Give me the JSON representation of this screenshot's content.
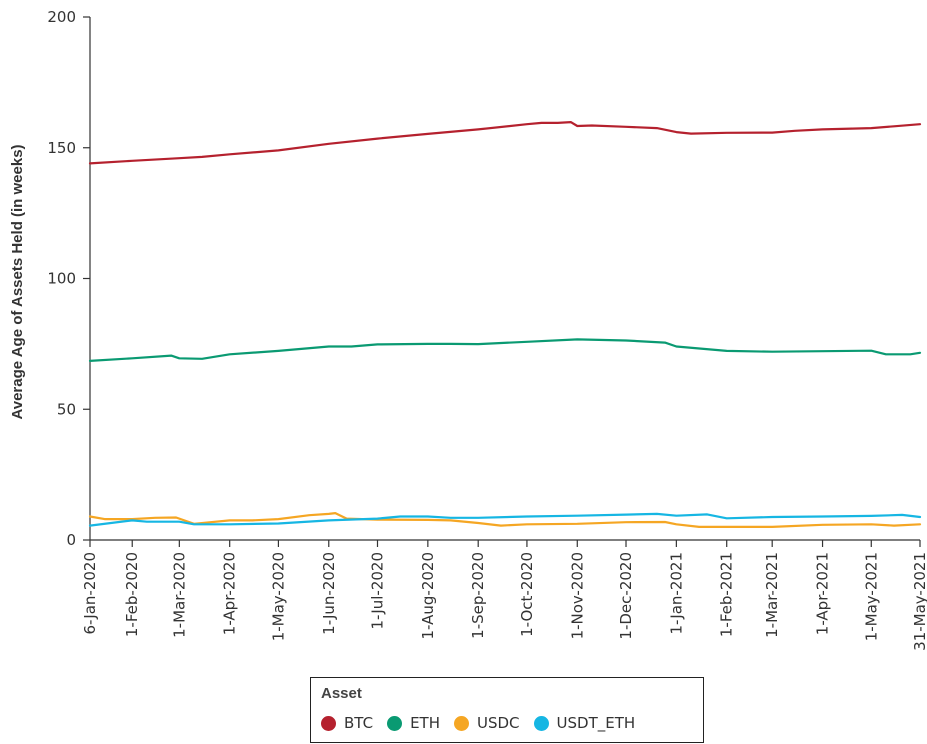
{
  "chart_data": {
    "type": "line",
    "title": "",
    "xlabel": "",
    "ylabel": "Average Age of Assets Held (in weeks)",
    "ylim": [
      0,
      200
    ],
    "yticks": [
      0,
      50,
      100,
      150,
      200
    ],
    "grid": false,
    "x_range": [
      "2020-01-06",
      "2021-05-31"
    ],
    "xtick_labels": [
      "6-Jan-2020",
      "1-Feb-2020",
      "1-Mar-2020",
      "1-Apr-2020",
      "1-May-2020",
      "1-Jun-2020",
      "1-Jul-2020",
      "1-Aug-2020",
      "1-Sep-2020",
      "1-Oct-2020",
      "1-Nov-2020",
      "1-Dec-2020",
      "1-Jan-2021",
      "1-Feb-2021",
      "1-Mar-2021",
      "1-Apr-2021",
      "1-May-2021",
      "31-May-2021"
    ],
    "xtick_dates": [
      "2020-01-06",
      "2020-02-01",
      "2020-03-01",
      "2020-04-01",
      "2020-05-01",
      "2020-06-01",
      "2020-07-01",
      "2020-08-01",
      "2020-09-01",
      "2020-10-01",
      "2020-11-01",
      "2020-12-01",
      "2021-01-01",
      "2021-02-01",
      "2021-03-01",
      "2021-04-01",
      "2021-05-01",
      "2021-05-31"
    ],
    "legend": {
      "title": "Asset",
      "placement": "bottom-center"
    },
    "series": [
      {
        "name": "BTC",
        "color": "#b5212e",
        "points": [
          [
            "2020-01-06",
            144
          ],
          [
            "2020-02-01",
            145
          ],
          [
            "2020-03-01",
            146
          ],
          [
            "2020-03-15",
            146.5
          ],
          [
            "2020-04-01",
            147.5
          ],
          [
            "2020-05-01",
            149
          ],
          [
            "2020-06-01",
            151.5
          ],
          [
            "2020-07-01",
            153.5
          ],
          [
            "2020-08-01",
            155.3
          ],
          [
            "2020-09-01",
            157
          ],
          [
            "2020-10-01",
            159
          ],
          [
            "2020-10-10",
            159.5
          ],
          [
            "2020-10-20",
            159.5
          ],
          [
            "2020-10-28",
            159.8
          ],
          [
            "2020-11-01",
            158.3
          ],
          [
            "2020-11-10",
            158.5
          ],
          [
            "2020-12-01",
            158
          ],
          [
            "2020-12-20",
            157.5
          ],
          [
            "2021-01-01",
            156
          ],
          [
            "2021-01-10",
            155.4
          ],
          [
            "2021-02-01",
            155.7
          ],
          [
            "2021-03-01",
            155.8
          ],
          [
            "2021-03-15",
            156.5
          ],
          [
            "2021-04-01",
            157
          ],
          [
            "2021-05-01",
            157.5
          ],
          [
            "2021-05-15",
            158.2
          ],
          [
            "2021-05-31",
            159
          ]
        ]
      },
      {
        "name": "ETH",
        "color": "#0a9a72",
        "points": [
          [
            "2020-01-06",
            68.5
          ],
          [
            "2020-02-01",
            69.5
          ],
          [
            "2020-02-25",
            70.5
          ],
          [
            "2020-03-01",
            69.5
          ],
          [
            "2020-03-15",
            69.3
          ],
          [
            "2020-04-01",
            71
          ],
          [
            "2020-05-01",
            72.3
          ],
          [
            "2020-06-01",
            74
          ],
          [
            "2020-06-15",
            74
          ],
          [
            "2020-07-01",
            74.8
          ],
          [
            "2020-08-01",
            75
          ],
          [
            "2020-08-15",
            75
          ],
          [
            "2020-09-01",
            74.9
          ],
          [
            "2020-10-01",
            75.8
          ],
          [
            "2020-11-01",
            76.7
          ],
          [
            "2020-12-01",
            76.3
          ],
          [
            "2020-12-25",
            75.5
          ],
          [
            "2021-01-01",
            74
          ],
          [
            "2021-02-01",
            72.3
          ],
          [
            "2021-03-01",
            72
          ],
          [
            "2021-04-01",
            72.2
          ],
          [
            "2021-05-01",
            72.4
          ],
          [
            "2021-05-10",
            71
          ],
          [
            "2021-05-25",
            71
          ],
          [
            "2021-05-31",
            71.6
          ]
        ]
      },
      {
        "name": "USDC",
        "color": "#f5a623",
        "points": [
          [
            "2020-01-06",
            9
          ],
          [
            "2020-01-15",
            8
          ],
          [
            "2020-02-01",
            8
          ],
          [
            "2020-02-15",
            8.5
          ],
          [
            "2020-02-28",
            8.6
          ],
          [
            "2020-03-10",
            6.2
          ],
          [
            "2020-04-01",
            7.5
          ],
          [
            "2020-04-15",
            7.5
          ],
          [
            "2020-05-01",
            8
          ],
          [
            "2020-05-20",
            9.5
          ],
          [
            "2020-06-01",
            10
          ],
          [
            "2020-06-05",
            10.3
          ],
          [
            "2020-06-12",
            8.2
          ],
          [
            "2020-07-01",
            7.8
          ],
          [
            "2020-08-01",
            7.7
          ],
          [
            "2020-08-15",
            7.5
          ],
          [
            "2020-09-01",
            6.5
          ],
          [
            "2020-09-15",
            5.5
          ],
          [
            "2020-10-01",
            6
          ],
          [
            "2020-11-01",
            6.2
          ],
          [
            "2020-12-01",
            6.8
          ],
          [
            "2020-12-25",
            6.9
          ],
          [
            "2021-01-01",
            6
          ],
          [
            "2021-01-15",
            5
          ],
          [
            "2021-02-01",
            5
          ],
          [
            "2021-03-01",
            5
          ],
          [
            "2021-04-01",
            5.8
          ],
          [
            "2021-05-01",
            6
          ],
          [
            "2021-05-15",
            5.5
          ],
          [
            "2021-05-31",
            6
          ]
        ]
      },
      {
        "name": "USDT_ETH",
        "color": "#16b6e3",
        "points": [
          [
            "2020-01-06",
            5.5
          ],
          [
            "2020-02-01",
            7.5
          ],
          [
            "2020-02-10",
            7
          ],
          [
            "2020-03-01",
            7
          ],
          [
            "2020-03-10",
            6
          ],
          [
            "2020-04-01",
            6
          ],
          [
            "2020-05-01",
            6.3
          ],
          [
            "2020-06-01",
            7.5
          ],
          [
            "2020-07-01",
            8.2
          ],
          [
            "2020-07-15",
            9
          ],
          [
            "2020-08-01",
            9
          ],
          [
            "2020-08-15",
            8.5
          ],
          [
            "2020-09-01",
            8.5
          ],
          [
            "2020-10-01",
            9
          ],
          [
            "2020-11-01",
            9.3
          ],
          [
            "2020-12-01",
            9.7
          ],
          [
            "2020-12-20",
            10
          ],
          [
            "2021-01-01",
            9.3
          ],
          [
            "2021-01-20",
            9.8
          ],
          [
            "2021-02-01",
            8.3
          ],
          [
            "2021-03-01",
            8.8
          ],
          [
            "2021-04-01",
            9
          ],
          [
            "2021-05-01",
            9.2
          ],
          [
            "2021-05-20",
            9.6
          ],
          [
            "2021-05-31",
            8.8
          ]
        ]
      }
    ]
  }
}
